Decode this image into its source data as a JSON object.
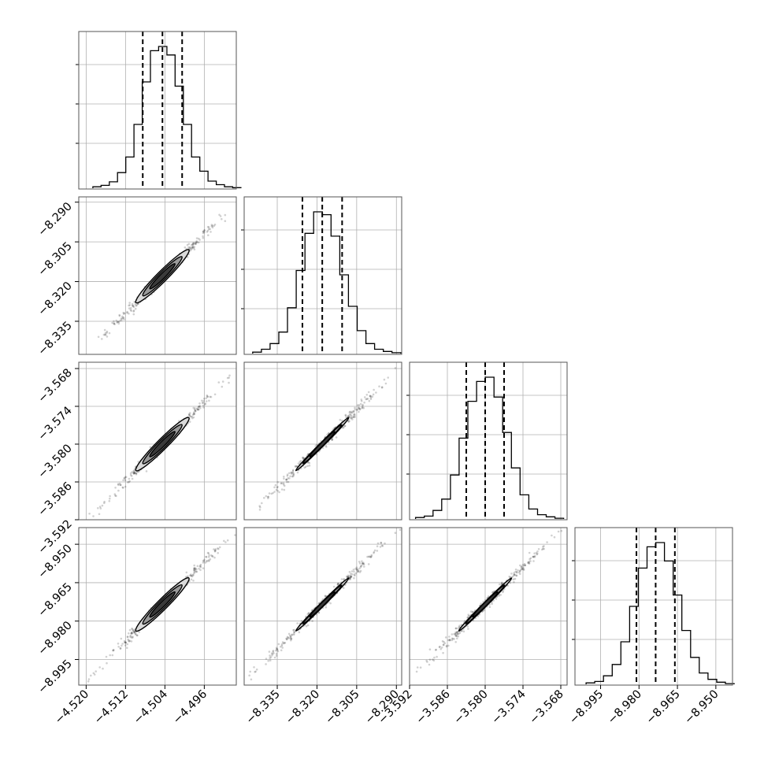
{
  "chart_data": {
    "type": "corner",
    "grid": true,
    "line_color": "#000000",
    "hist_color": "#000000",
    "quantile_style": "dashed",
    "parameters": [
      {
        "range": [
          -4.5215,
          -4.4895
        ],
        "ticks": [
          -4.52,
          -4.512,
          -4.504,
          -4.496
        ],
        "tick_labels": [
          "−4.520",
          "−4.512",
          "−4.504",
          "−4.496"
        ],
        "quantiles": [
          -4.5085,
          -4.5045,
          -4.5005
        ],
        "histogram": [
          0.01,
          0.02,
          0.045,
          0.11,
          0.22,
          0.45,
          0.75,
          0.97,
          1.0,
          0.94,
          0.72,
          0.45,
          0.22,
          0.12,
          0.05,
          0.025,
          0.01,
          0.004
        ]
      },
      {
        "range": [
          -8.3475,
          -8.288
        ],
        "ticks": [
          -8.335,
          -8.32,
          -8.305,
          -8.29
        ],
        "tick_labels": [
          "−8.335",
          "−8.320",
          "−8.305",
          "−8.290"
        ],
        "quantiles": [
          -8.3255,
          -8.318,
          -8.3105
        ],
        "histogram": [
          0.01,
          0.03,
          0.07,
          0.15,
          0.32,
          0.58,
          0.84,
          0.99,
          0.97,
          0.82,
          0.55,
          0.33,
          0.16,
          0.07,
          0.03,
          0.015,
          0.006
        ]
      },
      {
        "range": [
          -3.592,
          -3.567
        ],
        "ticks": [
          -3.592,
          -3.586,
          -3.58,
          -3.574,
          -3.568
        ],
        "tick_labels": [
          "−3.592",
          "−3.586",
          "−3.580",
          "−3.574",
          "−3.568"
        ],
        "quantiles": [
          -3.583,
          -3.58,
          -3.577
        ],
        "histogram": [
          0.01,
          0.02,
          0.06,
          0.14,
          0.31,
          0.57,
          0.83,
          0.97,
          1.0,
          0.86,
          0.61,
          0.36,
          0.17,
          0.07,
          0.03,
          0.015,
          0.005
        ]
      },
      {
        "range": [
          -9.005,
          -8.9435
        ],
        "ticks": [
          -8.995,
          -8.98,
          -8.965,
          -8.95
        ],
        "tick_labels": [
          "−8.995",
          "−8.980",
          "−8.965",
          "−8.950"
        ],
        "quantiles": [
          -8.981,
          -8.9735,
          -8.966
        ],
        "histogram": [
          0.01,
          0.02,
          0.06,
          0.14,
          0.3,
          0.55,
          0.82,
          0.97,
          1.0,
          0.87,
          0.63,
          0.38,
          0.19,
          0.08,
          0.035,
          0.015,
          0.005
        ]
      }
    ],
    "correlation": 0.995,
    "contour_levels": [
      0.95,
      0.7,
      0.45
    ],
    "contour_fills": [
      "#d9d9d9",
      "#9a9a9a",
      "#3a3a3a"
    ]
  }
}
